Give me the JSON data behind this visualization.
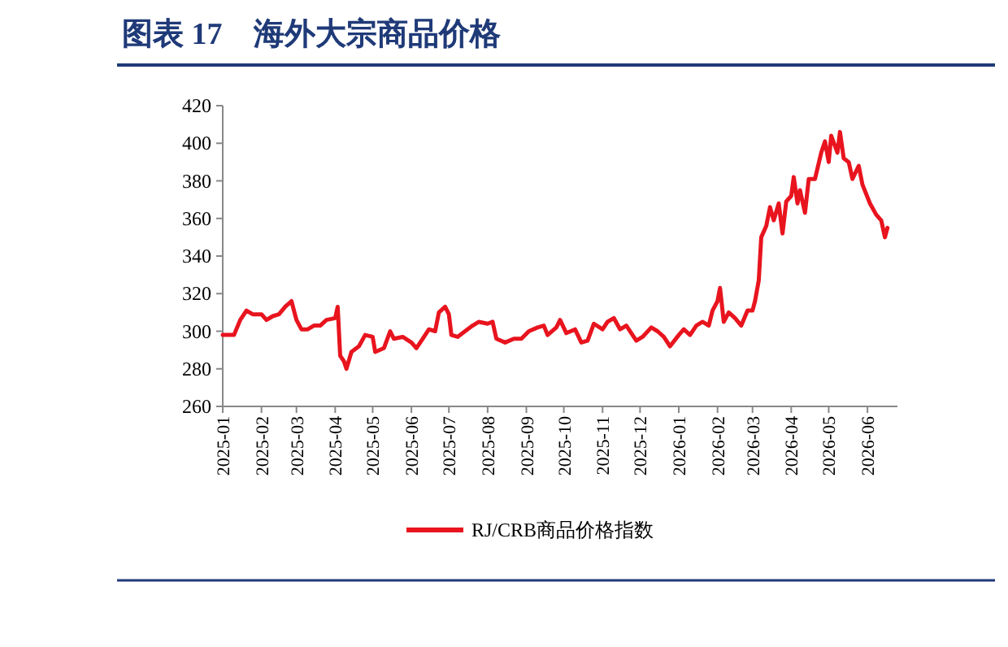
{
  "chart_data": {
    "type": "line",
    "title": "图表 17　海外大宗商品价格",
    "legend": "bottom",
    "grid": false,
    "marker": "none",
    "line_style": "solid",
    "xlim": [
      "2025-01-01",
      "2026-06-25"
    ],
    "xticks": [
      {
        "value": "2025-01-01",
        "label": "2025-01"
      },
      {
        "value": "2025-02-01",
        "label": "2025-02"
      },
      {
        "value": "2025-03-01",
        "label": "2025-03"
      },
      {
        "value": "2025-04-01",
        "label": "2025-04"
      },
      {
        "value": "2025-05-01",
        "label": "2025-05"
      },
      {
        "value": "2025-06-01",
        "label": "2025-06"
      },
      {
        "value": "2025-07-01",
        "label": "2025-07"
      },
      {
        "value": "2025-08-01",
        "label": "2025-08"
      },
      {
        "value": "2025-09-01",
        "label": "2025-09"
      },
      {
        "value": "2025-10-01",
        "label": "2025-10"
      },
      {
        "value": "2025-11-01",
        "label": "2025-11"
      },
      {
        "value": "2025-12-01",
        "label": "2025-12"
      },
      {
        "value": "2026-01-01",
        "label": "2026-01"
      },
      {
        "value": "2026-02-01",
        "label": "2026-02"
      },
      {
        "value": "2026-03-01",
        "label": "2026-03"
      },
      {
        "value": "2026-04-01",
        "label": "2026-04"
      },
      {
        "value": "2026-05-01",
        "label": "2026-05"
      },
      {
        "value": "2026-06-01",
        "label": "2026-06"
      }
    ],
    "ylim": [
      260,
      420
    ],
    "yticks": [
      260,
      280,
      300,
      320,
      340,
      360,
      380,
      400,
      420
    ],
    "series": [
      {
        "name": "RJ/CRB商品价格指数",
        "color": "#e8141e",
        "x": [
          "2025-01-01",
          "2025-01-10",
          "2025-01-15",
          "2025-01-20",
          "2025-01-25",
          "2025-02-01",
          "2025-02-05",
          "2025-02-10",
          "2025-02-15",
          "2025-02-20",
          "2025-02-25",
          "2025-03-01",
          "2025-03-05",
          "2025-03-10",
          "2025-03-15",
          "2025-03-20",
          "2025-03-25",
          "2025-04-01",
          "2025-04-03",
          "2025-04-05",
          "2025-04-08",
          "2025-04-10",
          "2025-04-14",
          "2025-04-20",
          "2025-04-25",
          "2025-05-01",
          "2025-05-03",
          "2025-05-10",
          "2025-05-15",
          "2025-05-18",
          "2025-05-25",
          "2025-06-01",
          "2025-06-05",
          "2025-06-10",
          "2025-06-15",
          "2025-06-20",
          "2025-06-23",
          "2025-06-28",
          "2025-07-01",
          "2025-07-03",
          "2025-07-08",
          "2025-07-12",
          "2025-07-20",
          "2025-07-25",
          "2025-08-01",
          "2025-08-05",
          "2025-08-08",
          "2025-08-15",
          "2025-08-22",
          "2025-08-28",
          "2025-09-03",
          "2025-09-10",
          "2025-09-15",
          "2025-09-18",
          "2025-09-25",
          "2025-09-28",
          "2025-10-03",
          "2025-10-10",
          "2025-10-15",
          "2025-10-20",
          "2025-10-25",
          "2025-11-01",
          "2025-11-05",
          "2025-11-10",
          "2025-11-15",
          "2025-11-20",
          "2025-11-28",
          "2025-12-03",
          "2025-12-10",
          "2025-12-15",
          "2025-12-20",
          "2025-12-25",
          "2026-01-01",
          "2026-01-05",
          "2026-01-10",
          "2026-01-15",
          "2026-01-20",
          "2026-01-25",
          "2026-01-28",
          "2026-02-01",
          "2026-02-03",
          "2026-02-06",
          "2026-02-10",
          "2026-02-15",
          "2026-02-20",
          "2026-02-25",
          "2026-03-01",
          "2026-03-03",
          "2026-03-06",
          "2026-03-08",
          "2026-03-12",
          "2026-03-15",
          "2026-03-18",
          "2026-03-22",
          "2026-03-25",
          "2026-03-28",
          "2026-04-01",
          "2026-04-03",
          "2026-04-06",
          "2026-04-08",
          "2026-04-12",
          "2026-04-15",
          "2026-04-20",
          "2026-04-25",
          "2026-04-28",
          "2026-05-01",
          "2026-05-03",
          "2026-05-08",
          "2026-05-10",
          "2026-05-13",
          "2026-05-17",
          "2026-05-20",
          "2026-05-25",
          "2026-05-28",
          "2026-06-03",
          "2026-06-08",
          "2026-06-12",
          "2026-06-15",
          "2026-06-17"
        ],
        "values": [
          298,
          298,
          306,
          311,
          309,
          309,
          306,
          308,
          309,
          313,
          316,
          306,
          301,
          301,
          303,
          303,
          306,
          307,
          313,
          287,
          284,
          280,
          289,
          292,
          298,
          297,
          289,
          291,
          300,
          296,
          297,
          294,
          291,
          296,
          301,
          300,
          310,
          313,
          309,
          298,
          297,
          299,
          303,
          305,
          304,
          305,
          296,
          294,
          296,
          296,
          300,
          302,
          303,
          298,
          302,
          306,
          299,
          301,
          294,
          295,
          304,
          301,
          305,
          307,
          301,
          303,
          295,
          297,
          302,
          300,
          297,
          292,
          298,
          301,
          298,
          303,
          305,
          303,
          311,
          316,
          323,
          305,
          310,
          307,
          303,
          311,
          311,
          316,
          327,
          350,
          356,
          366,
          359,
          368,
          352,
          369,
          372,
          382,
          368,
          375,
          363,
          381,
          381,
          395,
          401,
          390,
          404,
          395,
          406,
          392,
          390,
          381,
          388,
          378,
          368,
          362,
          359,
          350,
          355
        ]
      }
    ]
  }
}
